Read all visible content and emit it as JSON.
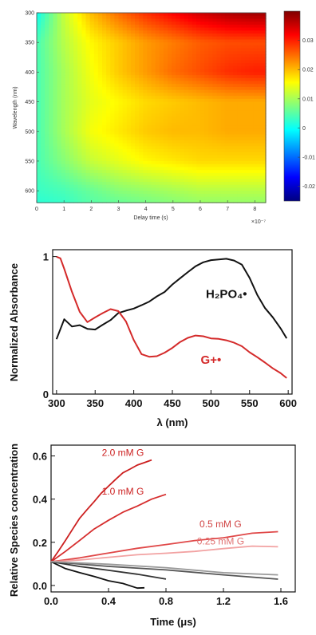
{
  "chart_data": [
    {
      "type": "heatmap",
      "xlabel": "Delay time (s)",
      "ylabel": "Wavelength (nm)",
      "x_exponent_label": "×10⁻⁷",
      "xlim": [
        0,
        8.4
      ],
      "ylim": [
        300,
        620
      ],
      "x_ticks": [
        "0",
        "1",
        "2",
        "3",
        "4",
        "5",
        "6",
        "7",
        "8"
      ],
      "y_ticks": [
        "300",
        "350",
        "400",
        "450",
        "500",
        "550",
        "600"
      ],
      "colorbar_ticks": [
        "0.03",
        "0.02",
        "0.01",
        "0",
        "-0.01",
        "-0.02"
      ],
      "colorbar_range": [
        -0.025,
        0.04
      ],
      "wavelengths_nm": [
        300,
        350,
        400,
        450,
        500,
        550,
        600,
        620
      ],
      "delay_times_e-7_s": [
        0,
        1,
        2,
        3,
        4,
        5,
        6,
        7,
        8
      ],
      "values": [
        [
          0.0,
          0.012,
          0.02,
          0.025,
          0.029,
          0.032,
          0.035,
          0.037,
          0.038
        ],
        [
          0.004,
          0.011,
          0.016,
          0.019,
          0.022,
          0.024,
          0.026,
          0.027,
          0.027
        ],
        [
          0.004,
          0.01,
          0.015,
          0.019,
          0.022,
          0.025,
          0.027,
          0.029,
          0.03
        ],
        [
          0.004,
          0.01,
          0.014,
          0.016,
          0.018,
          0.019,
          0.02,
          0.021,
          0.021
        ],
        [
          0.004,
          0.01,
          0.015,
          0.017,
          0.019,
          0.02,
          0.02,
          0.021,
          0.021
        ],
        [
          0.004,
          0.008,
          0.012,
          0.014,
          0.016,
          0.017,
          0.018,
          0.018,
          0.018
        ],
        [
          0.003,
          0.004,
          0.006,
          0.008,
          0.009,
          0.01,
          0.011,
          0.011,
          0.011
        ],
        [
          0.002,
          0.003,
          0.005,
          0.006,
          0.007,
          0.008,
          0.009,
          0.009,
          0.009
        ]
      ]
    },
    {
      "type": "line",
      "xlabel": "λ (nm)",
      "ylabel": "Normalized Absorbance",
      "xlim": [
        295,
        605
      ],
      "ylim": [
        0,
        1.05
      ],
      "x_ticks": [
        "300",
        "350",
        "400",
        "450",
        "500",
        "550",
        "600"
      ],
      "y_ticks": [
        "0",
        "1"
      ],
      "series": [
        {
          "name": "H2PO4•",
          "color": "#111111",
          "x": [
            300,
            310,
            320,
            330,
            340,
            350,
            360,
            370,
            380,
            390,
            400,
            410,
            420,
            430,
            440,
            450,
            460,
            470,
            480,
            490,
            500,
            510,
            520,
            530,
            540,
            550,
            560,
            570,
            580,
            590,
            598
          ],
          "y": [
            0.4,
            0.55,
            0.5,
            0.51,
            0.48,
            0.47,
            0.5,
            0.53,
            0.58,
            0.6,
            0.62,
            0.65,
            0.68,
            0.72,
            0.75,
            0.8,
            0.84,
            0.88,
            0.92,
            0.95,
            0.97,
            0.98,
            0.99,
            0.98,
            0.95,
            0.85,
            0.72,
            0.62,
            0.55,
            0.47,
            0.4
          ]
        },
        {
          "name": "G+•",
          "color": "#d42a2a",
          "x": [
            300,
            305,
            310,
            320,
            330,
            340,
            350,
            360,
            370,
            380,
            390,
            400,
            410,
            420,
            430,
            440,
            450,
            460,
            470,
            480,
            490,
            500,
            510,
            520,
            530,
            540,
            550,
            560,
            570,
            580,
            590,
            598
          ],
          "y": [
            1.0,
            0.98,
            0.92,
            0.75,
            0.6,
            0.52,
            0.55,
            0.58,
            0.61,
            0.6,
            0.53,
            0.4,
            0.3,
            0.28,
            0.28,
            0.3,
            0.33,
            0.37,
            0.4,
            0.42,
            0.42,
            0.41,
            0.41,
            0.4,
            0.38,
            0.35,
            0.3,
            0.26,
            0.22,
            0.18,
            0.15,
            0.12
          ]
        }
      ],
      "annotations": [
        {
          "text": "H₂PO₄•",
          "x": 520,
          "y": 0.7,
          "color": "#111111"
        },
        {
          "text": "G+•",
          "x": 500,
          "y": 0.22,
          "color": "#d42a2a"
        }
      ]
    },
    {
      "type": "line",
      "xlabel": "Time (μs)",
      "ylabel": "Relative Species concentration",
      "xlim": [
        0,
        1.7
      ],
      "ylim": [
        -0.03,
        0.65
      ],
      "x_ticks": [
        "0.0",
        "0.4",
        "0.8",
        "1.2",
        "1.6"
      ],
      "y_ticks": [
        "0.0",
        "0.2",
        "0.4",
        "0.6"
      ],
      "series": [
        {
          "name": "2.0 mM G",
          "color": "#cc1f1f",
          "x": [
            0,
            0.05,
            0.1,
            0.15,
            0.2,
            0.25,
            0.3,
            0.35,
            0.4,
            0.45,
            0.5,
            0.55,
            0.6,
            0.65,
            0.7
          ],
          "y": [
            0.11,
            0.16,
            0.21,
            0.26,
            0.31,
            0.35,
            0.39,
            0.43,
            0.46,
            0.49,
            0.52,
            0.54,
            0.56,
            0.57,
            0.58
          ]
        },
        {
          "name": "1.0 mM G",
          "color": "#d62d2d",
          "x": [
            0,
            0.1,
            0.2,
            0.3,
            0.4,
            0.5,
            0.6,
            0.7,
            0.8
          ],
          "y": [
            0.11,
            0.16,
            0.21,
            0.26,
            0.3,
            0.34,
            0.37,
            0.4,
            0.42
          ]
        },
        {
          "name": "0.5 mM G",
          "color": "#e04848",
          "x": [
            0,
            0.2,
            0.4,
            0.6,
            0.8,
            1.0,
            1.2,
            1.4,
            1.58
          ],
          "y": [
            0.11,
            0.13,
            0.15,
            0.17,
            0.19,
            0.21,
            0.22,
            0.24,
            0.25
          ]
        },
        {
          "name": "0.25 mM G",
          "color": "#f2a2a2",
          "x": [
            0,
            0.2,
            0.4,
            0.6,
            0.8,
            1.0,
            1.2,
            1.4,
            1.58
          ],
          "y": [
            0.11,
            0.12,
            0.13,
            0.14,
            0.15,
            0.16,
            0.17,
            0.18,
            0.18
          ]
        },
        {
          "color": "#111111",
          "x": [
            0,
            0.1,
            0.2,
            0.3,
            0.4,
            0.5,
            0.6,
            0.65
          ],
          "y": [
            0.11,
            0.08,
            0.06,
            0.04,
            0.02,
            0.01,
            -0.01,
            -0.01
          ]
        },
        {
          "color": "#333333",
          "x": [
            0,
            0.2,
            0.4,
            0.6,
            0.8
          ],
          "y": [
            0.11,
            0.09,
            0.07,
            0.05,
            0.03
          ]
        },
        {
          "color": "#555555",
          "x": [
            0,
            0.4,
            0.8,
            1.2,
            1.58
          ],
          "y": [
            0.11,
            0.09,
            0.07,
            0.05,
            0.03
          ]
        },
        {
          "color": "#999999",
          "x": [
            0,
            0.4,
            0.8,
            1.2,
            1.58
          ],
          "y": [
            0.11,
            0.1,
            0.08,
            0.06,
            0.05
          ]
        }
      ],
      "annotations": [
        {
          "text": "2.0 mM G",
          "x": 0.5,
          "y": 0.6,
          "color": "#cc1f1f"
        },
        {
          "text": "1.0 mM G",
          "x": 0.5,
          "y": 0.42,
          "color": "#cc1f1f"
        },
        {
          "text": "0.5 mM G",
          "x": 1.18,
          "y": 0.27,
          "color": "#d04040"
        },
        {
          "text": "0.25 mM G",
          "x": 1.18,
          "y": 0.19,
          "color": "#e07070"
        }
      ]
    }
  ]
}
